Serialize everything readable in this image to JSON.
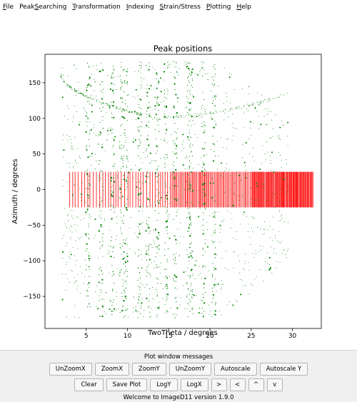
{
  "menu": [
    {
      "pre": "",
      "u": "F",
      "post": "ile",
      "name": "menu-file"
    },
    {
      "pre": "Peak",
      "u": "S",
      "post": "earching",
      "name": "menu-peaksearching"
    },
    {
      "pre": "",
      "u": "T",
      "post": "ransformation",
      "name": "menu-transformation"
    },
    {
      "pre": "",
      "u": "I",
      "post": "ndexing",
      "name": "menu-indexing"
    },
    {
      "pre": "",
      "u": "S",
      "post": "train/Stress",
      "name": "menu-strain-stress"
    },
    {
      "pre": "",
      "u": "P",
      "post": "lotting",
      "name": "menu-plotting"
    },
    {
      "pre": "",
      "u": "H",
      "post": "elp",
      "name": "menu-help"
    }
  ],
  "chart_data": {
    "type": "scatter",
    "title": "Peak positions",
    "xlabel": "TwoTheta / degrees",
    "ylabel": "Azimuth / degrees",
    "xlim": [
      0,
      33.5
    ],
    "ylim": [
      -195,
      190
    ],
    "xticks": [
      5,
      10,
      15,
      20,
      25,
      30
    ],
    "yticks": [
      150,
      100,
      50,
      0,
      -50,
      -100,
      -150
    ],
    "grid": false,
    "series": [
      {
        "style": "green dots",
        "color": "#008000",
        "description_points": "observed peaks, dense vertical stripes at x ≈ 5.2, 6.8, 8.2, 9.3, 9.8, 11.5, 12.5, 13.6, 14.7, 15.8, 17.4, 17.7, 19.2, 20.5",
        "stripes_x": [
          5.2,
          6.8,
          8.2,
          9.3,
          9.8,
          11.5,
          12.5,
          13.6,
          14.7,
          15.8,
          17.4,
          17.7,
          19.2,
          20.5
        ],
        "y_range": [
          -180,
          180
        ]
      },
      {
        "style": "red vertical lines",
        "color": "#ff0000",
        "x_range": [
          3.0,
          32.5
        ],
        "y_range": [
          -25,
          25
        ]
      }
    ]
  },
  "panel": {
    "title": "Plot window messages",
    "row1": [
      "UnZoomX",
      "ZoomX",
      "ZoomY",
      "UnZoomY",
      "Autoscale",
      "Autoscale Y"
    ],
    "row2": [
      "Clear",
      "Save Plot",
      "LogY",
      "LogX",
      ">",
      "<",
      "^",
      "v"
    ],
    "status": "Welcome to ImageD11 version 1.9.0"
  },
  "colors": {
    "peaks": "#008000",
    "computed": "#ff0000",
    "panel_bg": "#f0f0f0"
  }
}
